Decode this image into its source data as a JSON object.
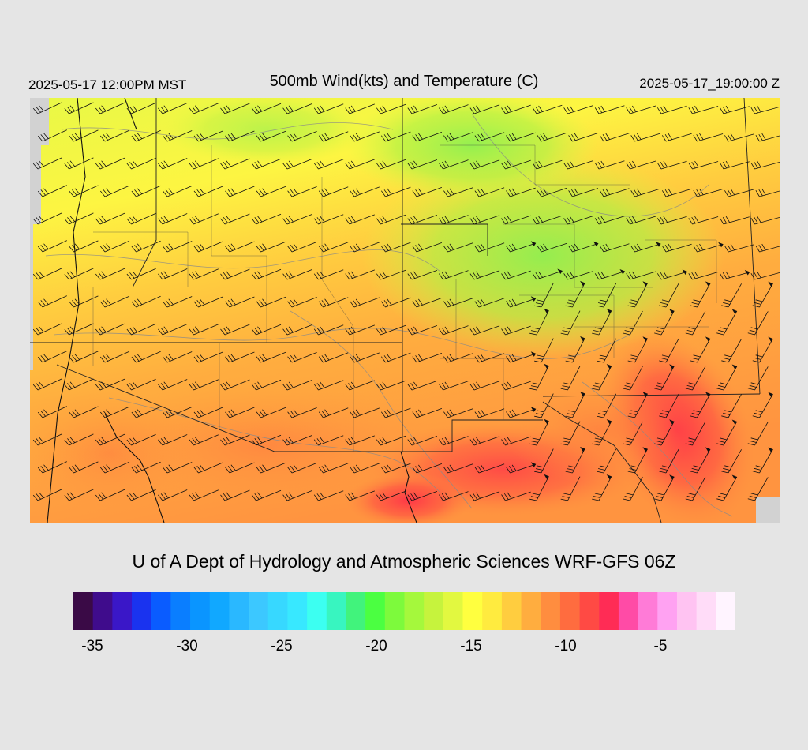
{
  "header": {
    "local_time": "2025-05-17 12:00PM MST",
    "title": "500mb Wind(kts) and Temperature (C)",
    "valid_time": "2025-05-17_19:00:00 Z"
  },
  "credit": "U of A Dept of Hydrology and Atmospheric Sciences WRF-GFS 06Z",
  "colorbar": {
    "colors": [
      "#3a0a46",
      "#3f0c8c",
      "#3a17c8",
      "#1a33ef",
      "#0a5cff",
      "#0a7eff",
      "#0a95ff",
      "#11a8ff",
      "#2ab8ff",
      "#3cc8ff",
      "#37d8ff",
      "#38e8ff",
      "#3cfff1",
      "#38f5c0",
      "#41f37c",
      "#4bff41",
      "#7dfa3c",
      "#a5f83c",
      "#c6f33d",
      "#e2f840",
      "#ffff3f",
      "#ffeb3f",
      "#ffcd3f",
      "#ffad3f",
      "#ff8d3f",
      "#ff6c3f",
      "#ff4a44",
      "#ff2c55",
      "#ff4ba6",
      "#ff7bd7",
      "#ffa2f2",
      "#ffc3f2",
      "#ffdcf8",
      "#fff4ff"
    ],
    "tick_labels": [
      "-35",
      "-30",
      "-25",
      "-20",
      "-15",
      "-10",
      "-5"
    ],
    "tick_label_values": [
      -35,
      -30,
      -25,
      -20,
      -15,
      -10,
      -5
    ]
  }
}
